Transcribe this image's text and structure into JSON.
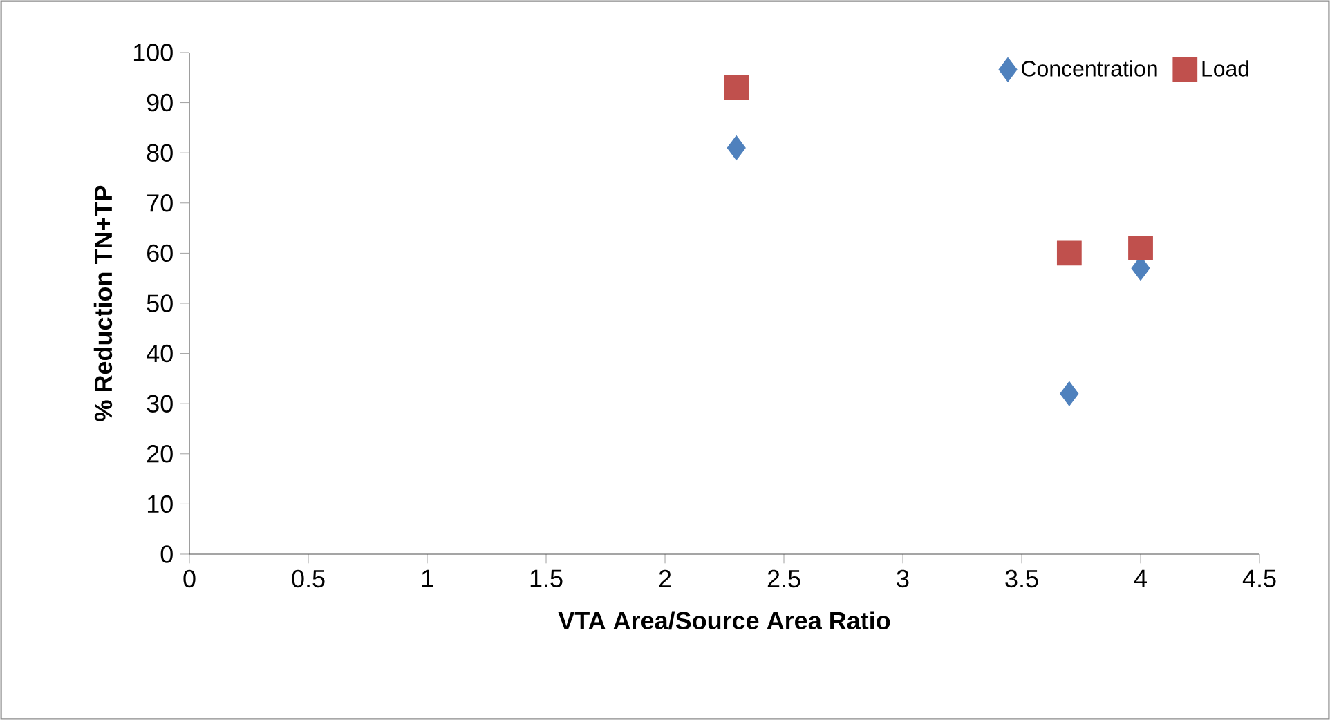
{
  "chart_data": {
    "type": "scatter",
    "xlabel": "VTA Area/Source Area Ratio",
    "ylabel": "% Reduction TN+TP",
    "xlim": [
      0,
      4.5
    ],
    "xticks": [
      0,
      0.5,
      1,
      1.5,
      2,
      2.5,
      3,
      3.5,
      4,
      4.5
    ],
    "ylim": [
      0,
      100
    ],
    "yticks": [
      0,
      10,
      20,
      30,
      40,
      50,
      60,
      70,
      80,
      90,
      100
    ],
    "grid": false,
    "legend": "top right",
    "series": [
      {
        "name": "Concentration",
        "color": "#4f81bd",
        "marker": "diamond",
        "x": [
          2.3,
          3.7,
          4.0
        ],
        "values": [
          81,
          32,
          57
        ]
      },
      {
        "name": "Load",
        "color": "#c0504d",
        "marker": "square",
        "x": [
          2.3,
          3.7,
          4.0
        ],
        "values": [
          93,
          60,
          61
        ]
      }
    ]
  }
}
